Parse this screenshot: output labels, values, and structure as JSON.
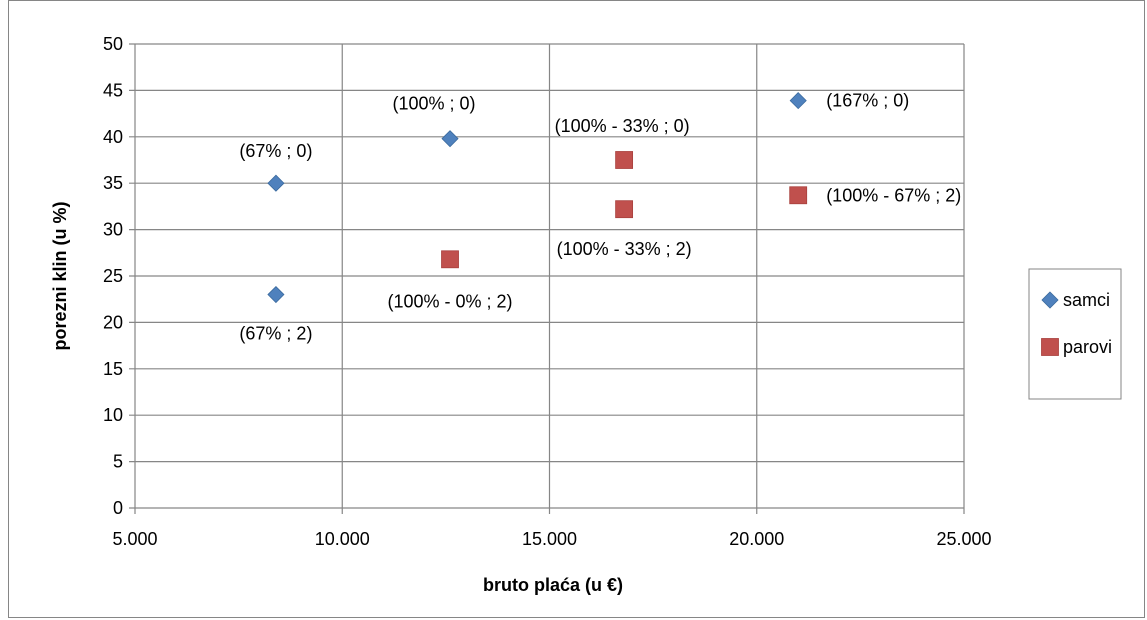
{
  "chart_data": {
    "type": "scatter",
    "title": "",
    "xlabel": "bruto plaća (u €)",
    "ylabel": "porezni klin (u %)",
    "xlim": [
      5000,
      25000
    ],
    "ylim": [
      0,
      50
    ],
    "x_ticks": [
      "5.000",
      "10.000",
      "15.000",
      "20.000",
      "25.000"
    ],
    "x_tick_values": [
      5000,
      10000,
      15000,
      20000,
      25000
    ],
    "y_ticks": [
      "0",
      "5",
      "10",
      "15",
      "20",
      "25",
      "30",
      "35",
      "40",
      "45",
      "50"
    ],
    "y_tick_values": [
      0,
      5,
      10,
      15,
      20,
      25,
      30,
      35,
      40,
      45,
      50
    ],
    "grid": true,
    "legend_position": "right",
    "series": [
      {
        "name": "samci",
        "marker": "diamond",
        "color": "#4F81BD",
        "points": [
          {
            "x": 8400,
            "y": 35.0,
            "label": "(67% ; 0)"
          },
          {
            "x": 8400,
            "y": 23.0,
            "label": "(67% ; 2)"
          },
          {
            "x": 12600,
            "y": 39.8,
            "label": "(100% ; 0)"
          },
          {
            "x": 21000,
            "y": 43.9,
            "label": "(167% ; 0)"
          }
        ]
      },
      {
        "name": "parovi",
        "marker": "square",
        "color": "#C0504D",
        "points": [
          {
            "x": 12600,
            "y": 26.8,
            "label": "(100% - 0% ; 2)"
          },
          {
            "x": 16800,
            "y": 37.5,
            "label": "(100% - 33% ; 0)"
          },
          {
            "x": 16800,
            "y": 32.2,
            "label": "(100% - 33% ; 2)"
          },
          {
            "x": 21000,
            "y": 33.7,
            "label": "(100% - 67% ; 2)"
          }
        ]
      }
    ]
  }
}
